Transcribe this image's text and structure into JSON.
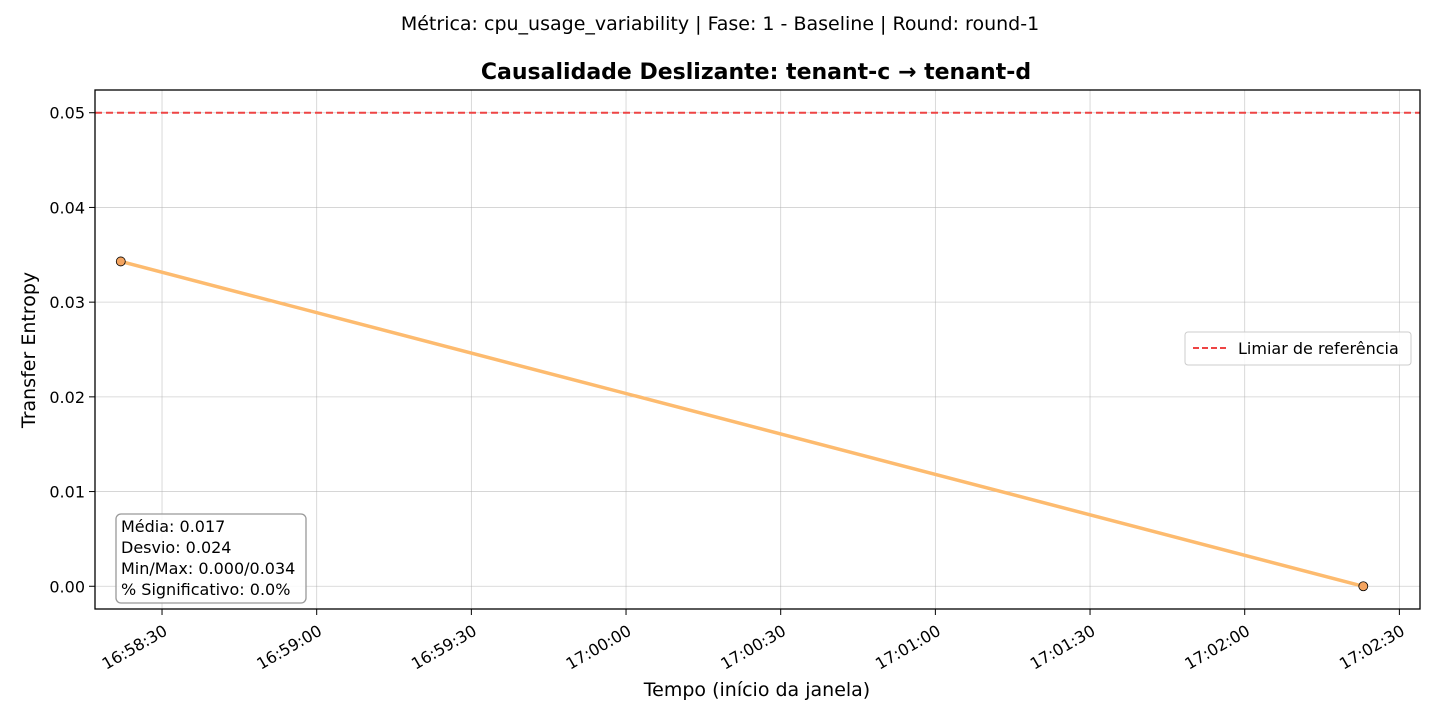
{
  "figure": {
    "suptitle": "Métrica: cpu_usage_variability | Fase: 1 - Baseline | Round: round-1"
  },
  "chart_data": {
    "type": "line",
    "title": "Causalidade Deslizante: tenant-c → tenant-d",
    "xlabel": "Tempo (início da janela)",
    "ylabel": "Transfer Entropy",
    "x_type": "time",
    "xlim": [
      "16:58:17",
      "17:02:34"
    ],
    "ylim": [
      -0.0024,
      0.0524
    ],
    "x_ticks": [
      "16:58:30",
      "16:59:00",
      "16:59:30",
      "17:00:00",
      "17:00:30",
      "17:01:00",
      "17:01:30",
      "17:02:00",
      "17:02:30"
    ],
    "y_ticks": [
      0.0,
      0.01,
      0.02,
      0.03,
      0.04,
      0.05
    ],
    "y_tick_labels": [
      "0.00",
      "0.01",
      "0.02",
      "0.03",
      "0.04",
      "0.05"
    ],
    "grid": true,
    "series": [
      {
        "x": [
          "16:58:22",
          "17:02:23"
        ],
        "y": [
          0.0343,
          0.0
        ],
        "color": "#fdbb6f",
        "marker_color": "#f4a460"
      }
    ],
    "reference_line": {
      "y": 0.05,
      "label": "Limiar de referência",
      "color": "#ee4444",
      "style": "dashed"
    },
    "legend": {
      "placement": "center-right",
      "entries": [
        "Limiar de referência"
      ]
    },
    "stats_box": {
      "placement": "bottom-left",
      "lines": [
        "Média: 0.017",
        "Desvio: 0.024",
        "Min/Max: 0.000/0.034",
        "% Significativo: 0.0%"
      ]
    }
  }
}
